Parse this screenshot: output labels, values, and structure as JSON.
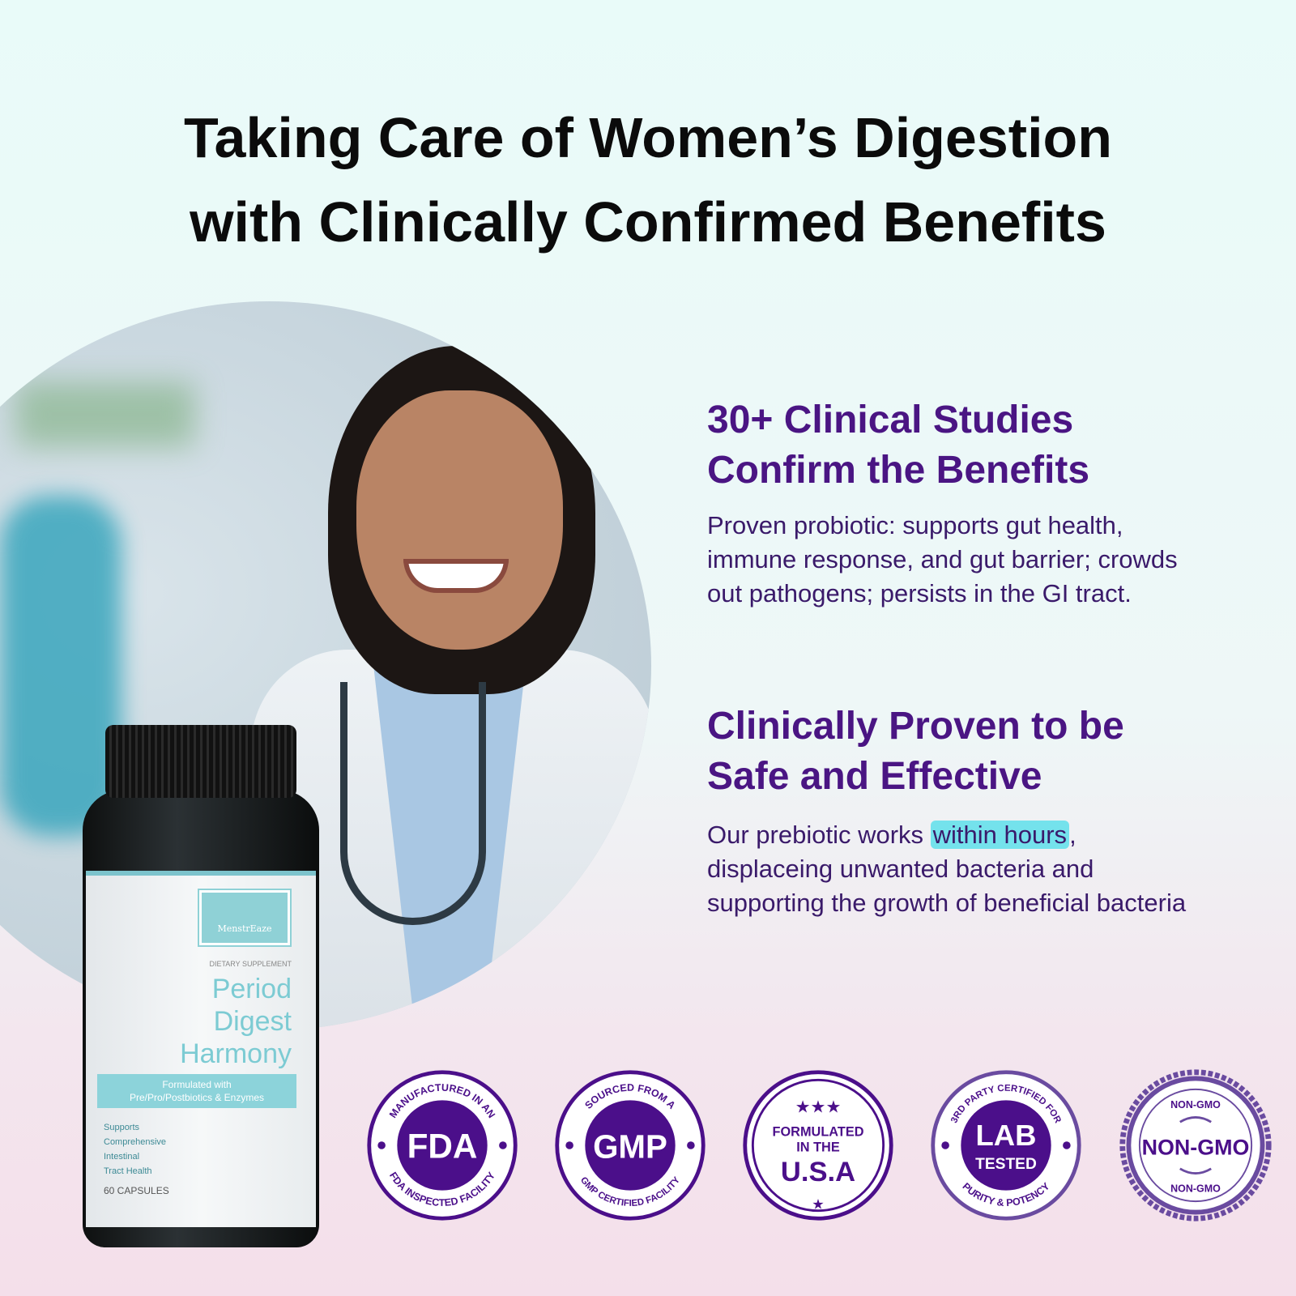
{
  "title": {
    "line1": "Taking Care of Women’s Digestion",
    "line2": "with Clinically Confirmed Benefits"
  },
  "sections": [
    {
      "heading1": "30+ Clinical Studies",
      "heading2": "Confirm the Benefits",
      "body": [
        "Proven probiotic: supports gut health,",
        "immune response, and gut barrier; crowds",
        "out pathogens; persists in the GI tract."
      ]
    },
    {
      "heading1": "Clinically Proven to be",
      "heading2": "Safe and Effective",
      "body_pre": "Our prebiotic works ",
      "highlight": "within hours",
      "body_post": ",",
      "body": [
        "displaceing unwanted bacteria and",
        "supporting the growth of beneficial bacteria"
      ]
    }
  ],
  "product": {
    "brand": "MenstrEaze",
    "type": "DIETARY SUPPLEMENT",
    "name": [
      "Period",
      "Digest",
      "Harmony"
    ],
    "band": [
      "Formulated with",
      "Pre/Pro/Postbiotics & Enzymes"
    ],
    "claims": [
      "Supports",
      "Comprehensive",
      "Intestinal",
      "Tract Health"
    ],
    "count": "60 CAPSULES"
  },
  "badges": [
    {
      "main": "FDA",
      "top": "MANUFACTURED IN AN",
      "bottom": "FDA INSPECTED FACILITY"
    },
    {
      "main": "GMP",
      "top": "SOURCED FROM A",
      "bottom": "GMP CERTIFIED FACILITY"
    },
    {
      "lines": [
        "FORMULATED",
        "IN THE",
        "U.S.A"
      ]
    },
    {
      "main": "LAB",
      "sub": "TESTED",
      "top": "3RD PARTY CERTIFIED FOR",
      "bottom": "PURITY & POTENCY"
    },
    {
      "main": "NON-GMO",
      "top": "NON-GMO",
      "bottom": "NON-GMO"
    }
  ],
  "colors": {
    "heading": "#4a1583",
    "body": "#3a1a6a",
    "highlight": "#74e2ec",
    "badge": "#4b0f8a",
    "badge_light": "#6a4ba0"
  }
}
